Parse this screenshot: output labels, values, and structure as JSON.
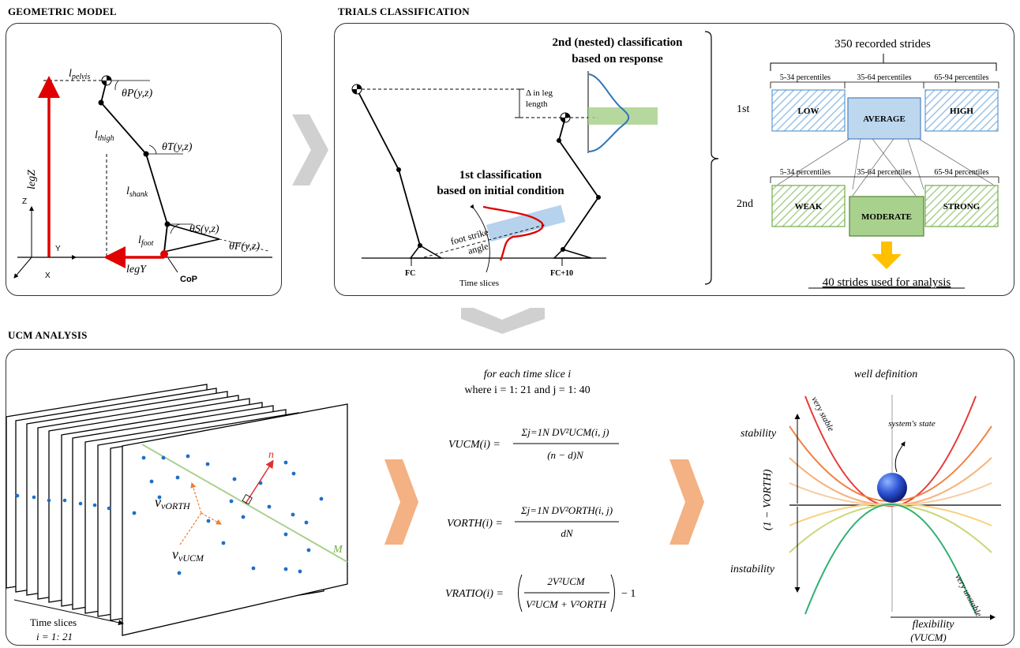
{
  "sections": {
    "geometric_model": "GEOMETRIC MODEL",
    "trials_classification": "TRIALS CLASSIFICATION",
    "ucm_analysis": "UCM ANALYSIS"
  },
  "geometric": {
    "l_pelvis": "pelvis",
    "l_thigh": "thigh",
    "l_shank": "shank",
    "l_foot": "foot",
    "theta_p": "θP(y,z)",
    "theta_t": "θT(y,z)",
    "theta_s": "θS(y,z)",
    "theta_f": "θF(y,z)",
    "leg_z": "legZ",
    "leg_y": "legY",
    "axis_z": "Z",
    "axis_y": "Y",
    "axis_x": "X",
    "cop": "CoP"
  },
  "trials": {
    "nested_title_1": "2nd (nested) classification",
    "nested_title_2": "based on response",
    "first_title_1": "1st classification",
    "first_title_2": "based on initial condition",
    "delta_1": "Δ in leg",
    "delta_2": "length",
    "foot_strike_1": "foot strike",
    "foot_strike_2": "angle",
    "fc": "FC",
    "fc10": "FC+10",
    "time_slices": "Time slices"
  },
  "strides": {
    "title": "350 recorded strides",
    "row1": "1st",
    "row2": "2nd",
    "pct_low": "5-34 percentiles",
    "pct_avg": "35-64 percentiles",
    "pct_high": "65-94 percentiles",
    "low": "LOW",
    "average": "AVERAGE",
    "high": "HIGH",
    "weak": "WEAK",
    "moderate": "MODERATE",
    "strong": "STRONG",
    "footer": "40 strides used for analysis",
    "blue": "#9dc3e6",
    "blue_border": "#4f81bd",
    "green": "#a9d18e",
    "green_border": "#548235",
    "arrow": "#ffc000"
  },
  "ucm": {
    "time_slices": "Time slices",
    "i_range": "i = 1: 21",
    "v_orth": "vORTH",
    "v_ucm": "vUCM",
    "n_vec": "n",
    "m_label": "M",
    "for_each": "for each time slice i",
    "where": "where i = 1: 21 and j = 1: 40",
    "eq_ucm_lhs": "VUCM(i) =",
    "eq_ucm_num": "Σj=1N DV²UCM(i, j)",
    "eq_ucm_den": "(n − d)N",
    "eq_orth_lhs": "VORTH(i) =",
    "eq_orth_num": "Σj=1N DV²ORTH(i, j)",
    "eq_orth_den": "dN",
    "eq_ratio_lhs": "VRATIO(i) =",
    "eq_ratio_num": "2V²UCM",
    "eq_ratio_den": "V²UCM + V²ORTH",
    "eq_ratio_tail": "− 1",
    "well_title": "well definition",
    "stability": "stability",
    "instability": "instability",
    "y_axis": "(1 − VORTH)",
    "flexibility": "flexibility",
    "vucm_axis": "(VUCM)",
    "very_stable": "very stable",
    "very_unstable": "very unstable",
    "system_state": "system's state",
    "chevron_color": "#f4b183"
  }
}
